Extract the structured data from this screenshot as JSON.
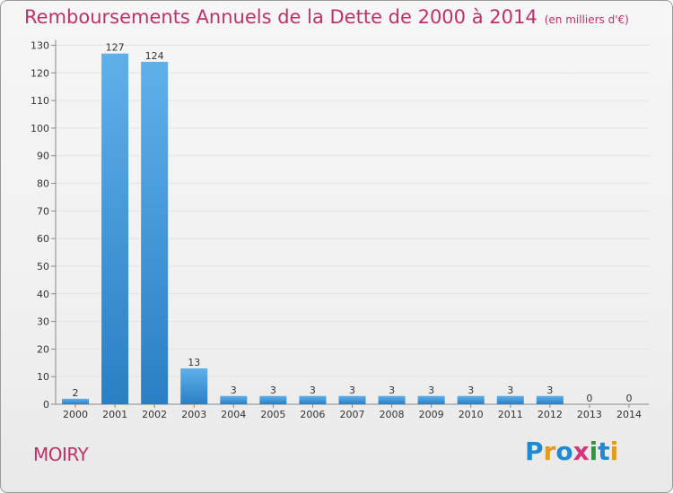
{
  "title": "Remboursements Annuels de la Dette de 2000 à 2014",
  "unit_note": "(en milliers d'€)",
  "commune": "MOIRY",
  "logo": {
    "text": "Proxiti",
    "letters": [
      {
        "char": "P",
        "color": "#1f8ad2"
      },
      {
        "char": "r",
        "color": "#e39b1a"
      },
      {
        "char": "o",
        "color": "#1f8ad2"
      },
      {
        "char": "x",
        "color": "#d8347a"
      },
      {
        "char": "i",
        "color": "#2a9a3d"
      },
      {
        "char": "t",
        "color": "#1f8ad2"
      },
      {
        "char": "i",
        "color": "#e39b1a"
      }
    ]
  },
  "colors": {
    "title": "#c0306a",
    "bar_top": "#5fb0ea",
    "bar_bottom": "#2a7fc4",
    "grid": "#e3e3e3",
    "axis": "#888888"
  },
  "chart_data": {
    "type": "bar",
    "categories": [
      "2000",
      "2001",
      "2002",
      "2003",
      "2004",
      "2005",
      "2006",
      "2007",
      "2008",
      "2009",
      "2010",
      "2011",
      "2012",
      "2013",
      "2014"
    ],
    "values": [
      2,
      127,
      124,
      13,
      3,
      3,
      3,
      3,
      3,
      3,
      3,
      3,
      3,
      0,
      0
    ],
    "ylim": [
      0,
      130
    ],
    "yticks": [
      0,
      10,
      20,
      30,
      40,
      50,
      60,
      70,
      80,
      90,
      100,
      110,
      120,
      130
    ],
    "grid": true
  }
}
